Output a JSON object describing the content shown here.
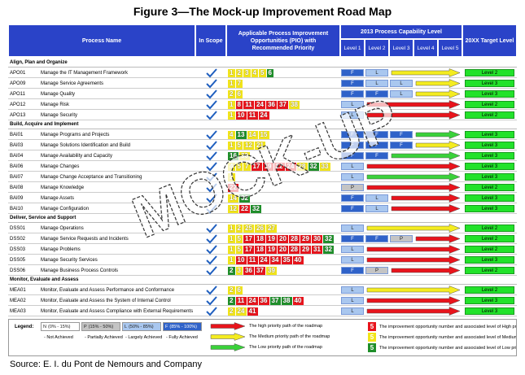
{
  "title": "Figure 3—The Mock-up Improvement Road Map",
  "header": {
    "process": "Process Name",
    "scope": "In Scope",
    "pio": "Applicable Process Improvement Opportunities (PIO) with Recommended Priority",
    "capability": "2013 Process Capability Level",
    "levels": [
      "Level 1",
      "Level 2",
      "Level 3",
      "Level 4",
      "Level 5"
    ],
    "target": "20XX Target Level"
  },
  "colors": {
    "H": "#e8141c",
    "M": "#f2e51a",
    "L": "#1f8f2a"
  },
  "arrow_colors": {
    "H": "#e8141c",
    "M": "#f4ec20",
    "L": "#3ad13a"
  },
  "level_colors": {
    "F": "#2f62c9",
    "L": "#a9c7ef",
    "P": "#c4c4c4",
    "N": "#ffffff"
  },
  "sections": [
    {
      "title": "Align, Plan and Organize",
      "rows": [
        {
          "id": "APO01",
          "name": "Manage the IT Management Framework",
          "in_scope": true,
          "pio": [
            1,
            2,
            3,
            4,
            5,
            6
          ],
          "priority": [
            "M",
            "M",
            "M",
            "M",
            "M",
            "L"
          ],
          "levels": [
            "F",
            "L"
          ],
          "path": "M",
          "target": "Level 2"
        },
        {
          "id": "APO09",
          "name": "Manage Service Agreements",
          "in_scope": true,
          "pio": [
            1,
            7
          ],
          "priority": [
            "M",
            "M"
          ],
          "levels": [
            "F",
            "L",
            "L"
          ],
          "path": "M",
          "target": "Level 3"
        },
        {
          "id": "APO11",
          "name": "Manage Quality",
          "in_scope": true,
          "pio": [
            2,
            6
          ],
          "priority": [
            "M",
            "M"
          ],
          "levels": [
            "F",
            "F",
            "L"
          ],
          "path": "M",
          "target": "Level 3"
        },
        {
          "id": "APO12",
          "name": "Manage Risk",
          "in_scope": true,
          "pio": [
            1,
            8,
            11,
            24,
            36,
            37,
            38
          ],
          "priority": [
            "M",
            "H",
            "H",
            "H",
            "H",
            "H",
            "M"
          ],
          "levels": [
            "L"
          ],
          "path": "H",
          "target": "Level 2"
        },
        {
          "id": "APO13",
          "name": "Manage Security",
          "in_scope": true,
          "pio": [
            1,
            10,
            11,
            24
          ],
          "priority": [
            "M",
            "H",
            "H",
            "H"
          ],
          "levels": [
            "L"
          ],
          "path": "H",
          "target": "Level 2"
        }
      ]
    },
    {
      "title": "Build, Acquire and Implement",
      "rows": [
        {
          "id": "BAI01",
          "name": "Manage Programs and Projects",
          "in_scope": true,
          "pio": [
            4,
            13,
            14,
            15
          ],
          "priority": [
            "M",
            "L",
            "M",
            "M"
          ],
          "levels": [
            "F",
            "F",
            "F"
          ],
          "path": "L",
          "target": "Level 3"
        },
        {
          "id": "BAI03",
          "name": "Manage Solutions Identification and Build",
          "in_scope": true,
          "pio": [
            1,
            5,
            12,
            21
          ],
          "priority": [
            "M",
            "M",
            "M",
            "M"
          ],
          "levels": [
            "F",
            "F",
            "F"
          ],
          "path": "M",
          "target": "Level 3"
        },
        {
          "id": "BAI04",
          "name": "Manage Availability and Capacity",
          "in_scope": true,
          "pio": [
            16,
            30
          ],
          "priority": [
            "L",
            "M"
          ],
          "levels": [
            "F",
            "F"
          ],
          "path": "L",
          "target": "Level 3"
        },
        {
          "id": "BAI06",
          "name": "Manage Changes",
          "in_scope": true,
          "pio": [
            4,
            5,
            7,
            17,
            19,
            22,
            24,
            28,
            32,
            33
          ],
          "priority": [
            "M",
            "M",
            "M",
            "H",
            "H",
            "H",
            "H",
            "M",
            "L",
            "M"
          ],
          "levels": [
            "L"
          ],
          "path": "H",
          "target": "Level 3"
        },
        {
          "id": "BAI07",
          "name": "Manage Change Acceptance and Transitioning",
          "in_scope": true,
          "pio": [
            2
          ],
          "priority": [
            "M"
          ],
          "levels": [
            "L"
          ],
          "path": "L",
          "target": "Level 3"
        },
        {
          "id": "BAI08",
          "name": "Manage Knowledge",
          "in_scope": true,
          "pio": [
            22
          ],
          "priority": [
            "H"
          ],
          "levels": [
            "P"
          ],
          "path": "H",
          "target": "Level 2"
        },
        {
          "id": "BAI09",
          "name": "Manage Assets",
          "in_scope": true,
          "pio": [
            14,
            32
          ],
          "priority": [
            "M",
            "L"
          ],
          "levels": [
            "F",
            "L"
          ],
          "path": "H",
          "target": "Level 3"
        },
        {
          "id": "BAI10",
          "name": "Manage Configuration",
          "in_scope": true,
          "pio": [
            12,
            22,
            32
          ],
          "priority": [
            "M",
            "H",
            "L"
          ],
          "levels": [
            "F",
            "L"
          ],
          "path": "H",
          "target": "Level 3"
        }
      ]
    },
    {
      "title": "Deliver, Service and Support",
      "rows": [
        {
          "id": "DSS01",
          "name": "Manage Operations",
          "in_scope": true,
          "pio": [
            1,
            2,
            25,
            26,
            27
          ],
          "priority": [
            "M",
            "M",
            "M",
            "M",
            "M"
          ],
          "levels": [
            "L"
          ],
          "path": "M",
          "target": "Level 2"
        },
        {
          "id": "DSS02",
          "name": "Manage Service Requests and Incidents",
          "in_scope": true,
          "pio": [
            1,
            5,
            17,
            18,
            19,
            20,
            28,
            29,
            30,
            32
          ],
          "priority": [
            "M",
            "M",
            "H",
            "H",
            "H",
            "H",
            "H",
            "H",
            "H",
            "L"
          ],
          "levels": [
            "F",
            "F",
            "P"
          ],
          "path": "H",
          "target": "Level 2"
        },
        {
          "id": "DSS03",
          "name": "Manage Problems",
          "in_scope": true,
          "pio": [
            1,
            5,
            17,
            18,
            19,
            20,
            28,
            29,
            31,
            32
          ],
          "priority": [
            "M",
            "M",
            "H",
            "H",
            "H",
            "H",
            "H",
            "H",
            "H",
            "L"
          ],
          "levels": [
            "L"
          ],
          "path": "H",
          "target": "Level 2"
        },
        {
          "id": "DSS05",
          "name": "Manage Security Services",
          "in_scope": true,
          "pio": [
            1,
            10,
            11,
            24,
            34,
            35,
            40
          ],
          "priority": [
            "M",
            "H",
            "H",
            "H",
            "H",
            "H",
            "H"
          ],
          "levels": [
            "L"
          ],
          "path": "H",
          "target": "Level 3"
        },
        {
          "id": "DSS06",
          "name": "Manage Business Process Controls",
          "in_scope": true,
          "pio": [
            2,
            3,
            36,
            37,
            39
          ],
          "priority": [
            "L",
            "M",
            "H",
            "H",
            "M"
          ],
          "levels": [
            "F",
            "P"
          ],
          "path": "H",
          "target": "Level 2"
        }
      ]
    },
    {
      "title": "Monitor, Evaluate and Assess",
      "rows": [
        {
          "id": "MEA01",
          "name": "Monitor, Evaluate and Assess Performance and Conformance",
          "in_scope": true,
          "pio": [
            2,
            6
          ],
          "priority": [
            "M",
            "M"
          ],
          "levels": [
            "L"
          ],
          "path": "M",
          "target": "Level 2"
        },
        {
          "id": "MEA02",
          "name": "Monitor, Evaluate and Assess the System of Internal Control",
          "in_scope": true,
          "pio": [
            2,
            11,
            24,
            36,
            37,
            38,
            40
          ],
          "priority": [
            "L",
            "H",
            "H",
            "H",
            "L",
            "L",
            "H"
          ],
          "levels": [
            "L"
          ],
          "path": "H",
          "target": "Level 3"
        },
        {
          "id": "MEA03",
          "name": "Monitor, Evaluate and Assess Compliance with External Requirements",
          "in_scope": true,
          "pio": [
            2,
            24,
            41
          ],
          "priority": [
            "M",
            "M",
            "H"
          ],
          "levels": [
            "L"
          ],
          "path": "H",
          "target": "Level 3"
        }
      ]
    }
  ],
  "legend": {
    "label": "Legend:",
    "levels": [
      {
        "code": "N",
        "range": "(0% - 15%)",
        "desc": "- Not Achieved"
      },
      {
        "code": "P",
        "range": "(15% - 50%)",
        "desc": "- Partially Achieved"
      },
      {
        "code": "L",
        "range": "(50% - 85%)",
        "desc": "- Largely Achieved"
      },
      {
        "code": "F",
        "range": "(85% - 100%)",
        "desc": "- Fully Achieved"
      }
    ],
    "arrows": [
      {
        "p": "H",
        "text": "The high priority path of the roadmap"
      },
      {
        "p": "M",
        "text": "The Medium priority path of the roadmap"
      },
      {
        "p": "L",
        "text": "The Low priority path of the roadmap"
      }
    ],
    "numbers": [
      {
        "n": 5,
        "p": "H",
        "text": "The improvement opportunity number and associated level of High priority"
      },
      {
        "n": 5,
        "p": "M",
        "text": "The improvement opportunity number and associated level of Medium priority"
      },
      {
        "n": 5,
        "p": "L",
        "text": "The improvement opportunity number and associated level of Low priority"
      }
    ]
  },
  "watermark": "MOCK-UP",
  "source": "Source:  E. I. du Pont de Nemours and Company"
}
